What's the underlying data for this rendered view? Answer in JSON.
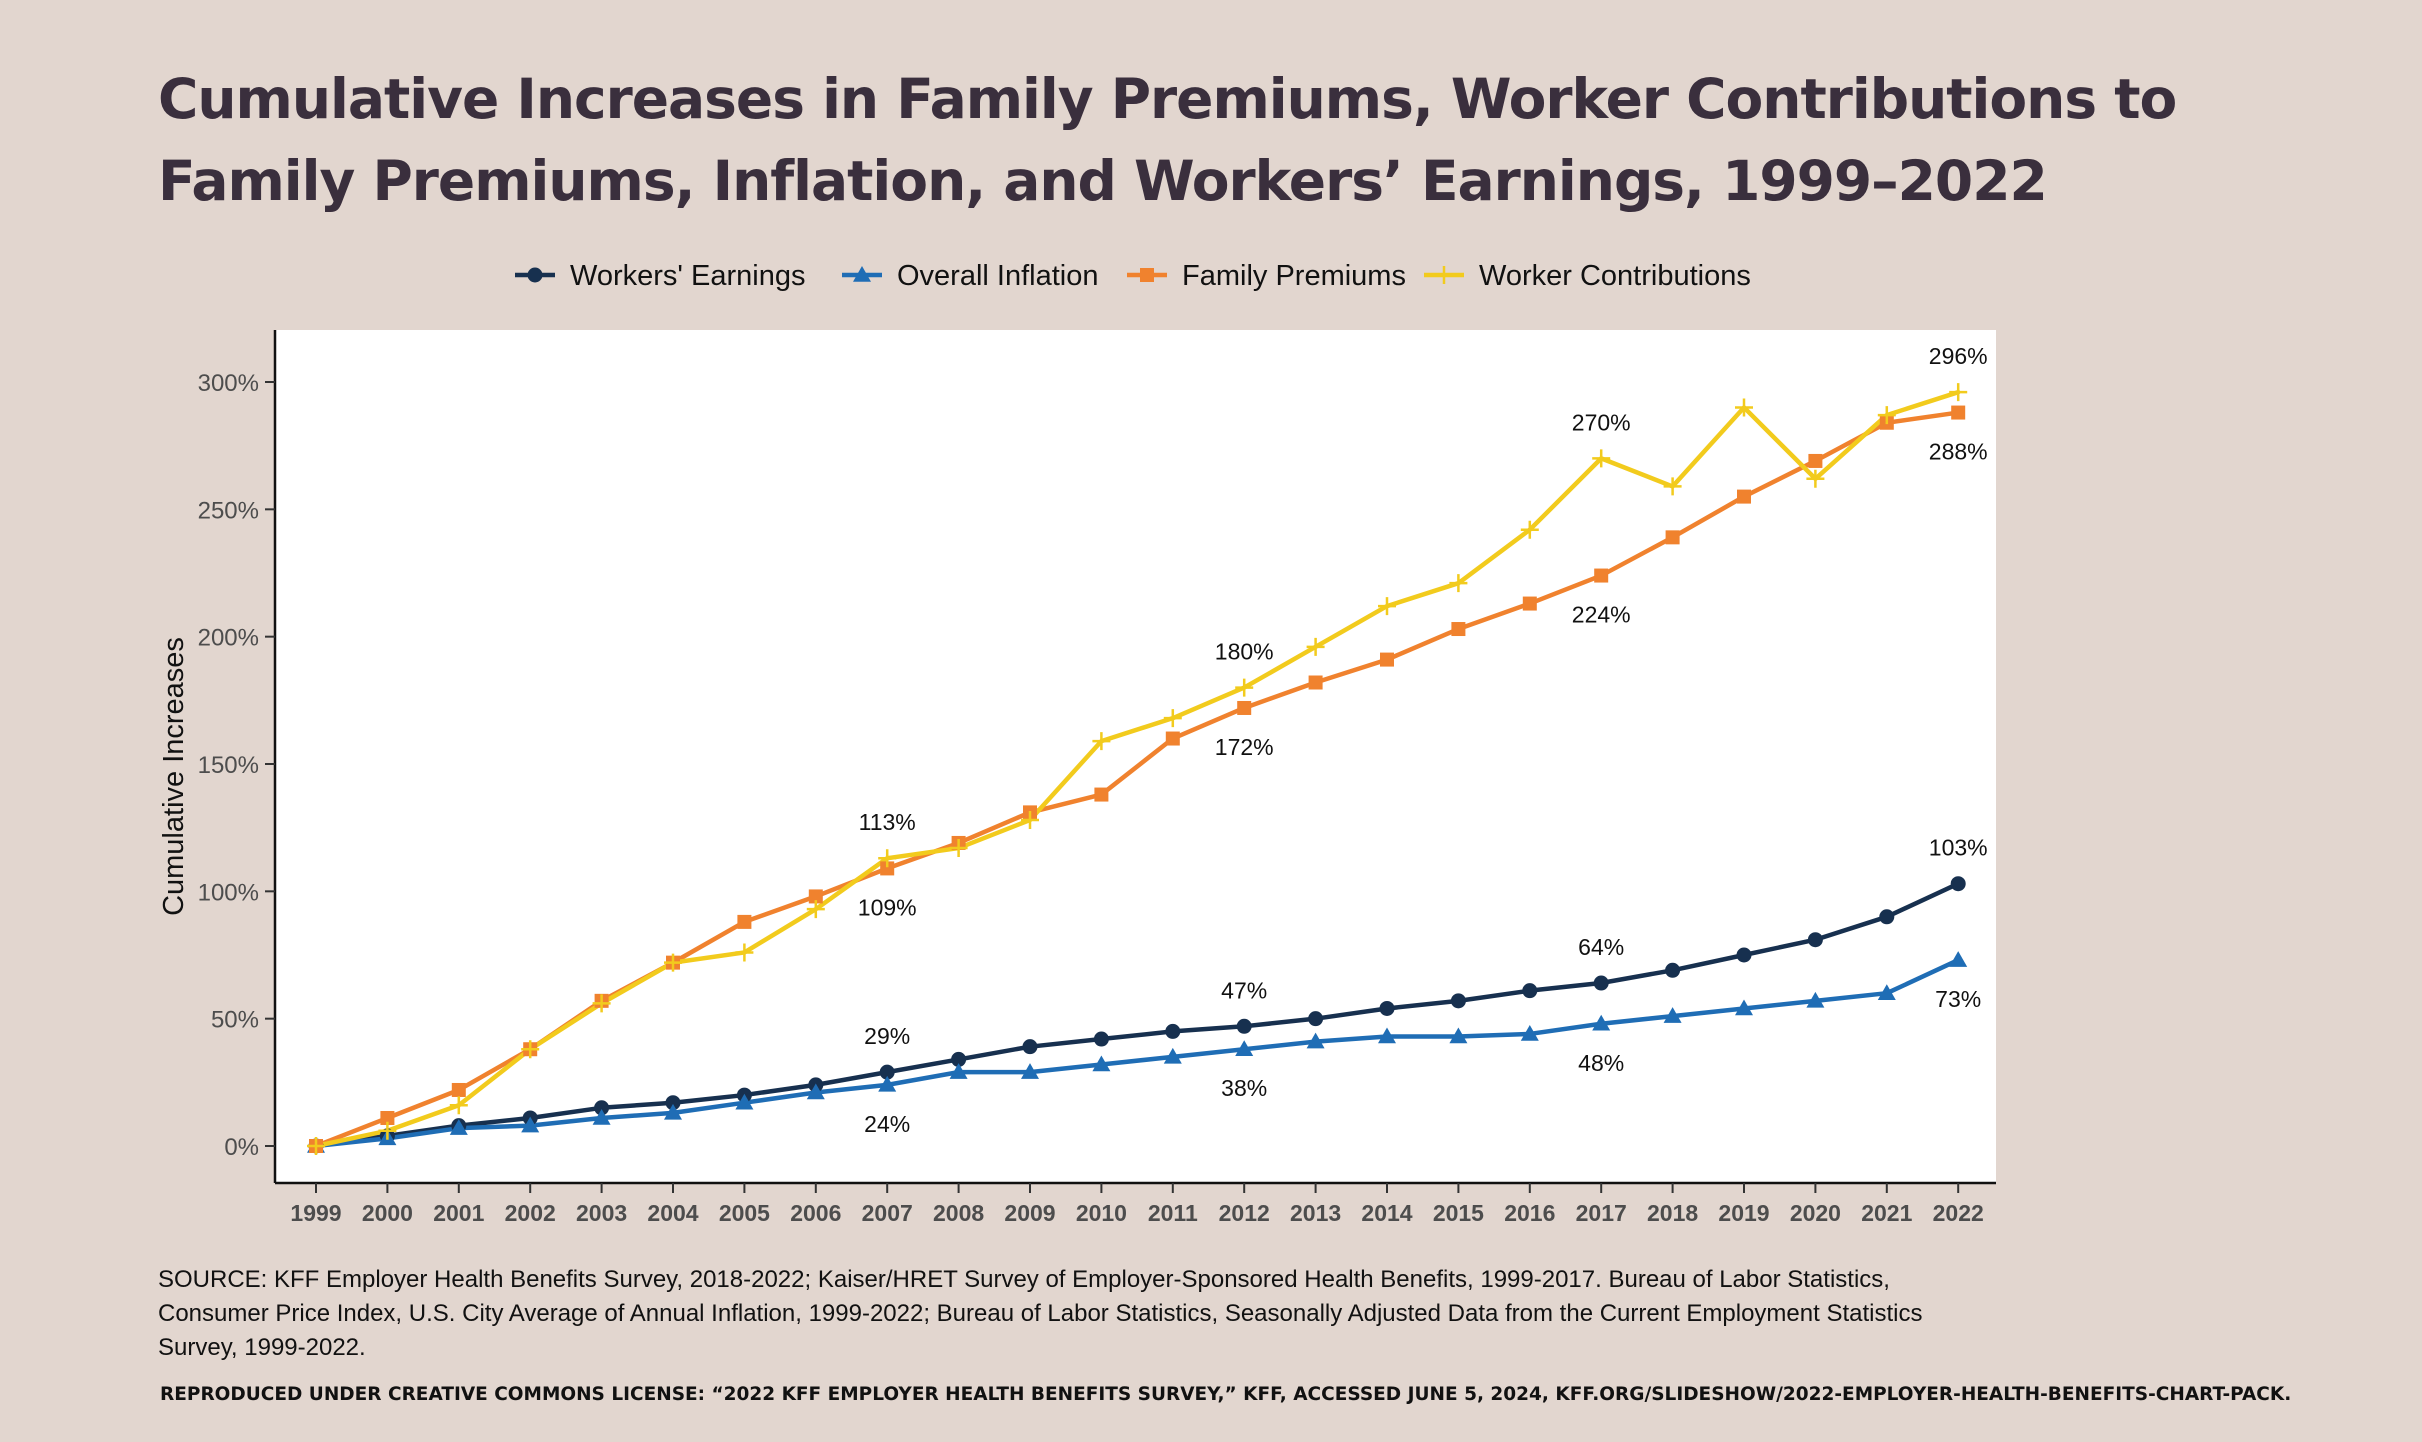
{
  "title": {
    "line1": "Cumulative Increases in Family Premiums, Worker Contributions to",
    "line2": "Family Premiums, Inflation, and Workers’ Earnings, 1999–2022"
  },
  "source": {
    "text": "SOURCE: KFF Employer Health Benefits Survey, 2018-2022; Kaiser/HRET Survey of Employer-Sponsored Health Benefits, 1999-2017. Bureau of Labor Statistics, Consumer Price Index, U.S. City Average of Annual Inflation, 1999-2022; Bureau of Labor Statistics, Seasonally Adjusted Data from the Current Employment Statistics Survey, 1999-2022."
  },
  "license": {
    "text": "REPRODUCED UNDER CREATIVE COMMONS LICENSE: “2022 KFF EMPLOYER HEALTH BENEFITS SURVEY,” KFF, ACCESSED JUNE 5, 2024, KFF.ORG/SLIDESHOW/2022-EMPLOYER-HEALTH-BENEFITS-CHART-PACK."
  },
  "chart_data": {
    "type": "line",
    "ylabel": "Cumulative Increases",
    "xlabel": "",
    "ylim": [
      -6,
      320
    ],
    "yticks": [
      0,
      50,
      100,
      150,
      200,
      250,
      300
    ],
    "ytick_labels": [
      "0%",
      "50%",
      "100%",
      "150%",
      "200%",
      "250%",
      "300%"
    ],
    "grid": false,
    "legend_position": "top-center",
    "x": [
      "1999",
      "2000",
      "2001",
      "2002",
      "2003",
      "2004",
      "2005",
      "2006",
      "2007",
      "2008",
      "2009",
      "2010",
      "2011",
      "2012",
      "2013",
      "2014",
      "2015",
      "2016",
      "2017",
      "2018",
      "2019",
      "2020",
      "2021",
      "2022"
    ],
    "series": [
      {
        "name": "Workers' Earnings",
        "color": "#17304f",
        "marker": "circle",
        "values": [
          0,
          4,
          8,
          11,
          15,
          17,
          20,
          24,
          29,
          34,
          39,
          42,
          45,
          47,
          50,
          54,
          57,
          61,
          64,
          69,
          75,
          81,
          90,
          103
        ]
      },
      {
        "name": "Overall Inflation",
        "color": "#1f6db5",
        "marker": "triangle",
        "values": [
          0,
          3,
          7,
          8,
          11,
          13,
          17,
          21,
          24,
          29,
          29,
          32,
          35,
          38,
          41,
          43,
          43,
          44,
          48,
          51,
          54,
          57,
          60,
          73
        ]
      },
      {
        "name": "Family Premiums",
        "color": "#f0822e",
        "marker": "square",
        "values": [
          0,
          11,
          22,
          38,
          57,
          72,
          88,
          98,
          109,
          119,
          131,
          138,
          160,
          172,
          182,
          191,
          203,
          213,
          224,
          239,
          255,
          269,
          284,
          288
        ]
      },
      {
        "name": "Worker Contributions",
        "color": "#f2cb1d",
        "marker": "plus",
        "values": [
          0,
          6,
          16,
          38,
          56,
          72,
          76,
          93,
          113,
          117,
          128,
          159,
          168,
          180,
          196,
          212,
          221,
          242,
          270,
          259,
          290,
          262,
          287,
          296
        ]
      }
    ],
    "annotations": [
      {
        "series": "Worker Contributions",
        "x": "2007",
        "label": "113%",
        "placement": "above"
      },
      {
        "series": "Family Premiums",
        "x": "2007",
        "label": "109%",
        "placement": "below"
      },
      {
        "series": "Worker Contributions",
        "x": "2012",
        "label": "180%",
        "placement": "above"
      },
      {
        "series": "Family Premiums",
        "x": "2012",
        "label": "172%",
        "placement": "below"
      },
      {
        "series": "Worker Contributions",
        "x": "2017",
        "label": "270%",
        "placement": "above"
      },
      {
        "series": "Family Premiums",
        "x": "2017",
        "label": "224%",
        "placement": "below"
      },
      {
        "series": "Worker Contributions",
        "x": "2022",
        "label": "296%",
        "placement": "above"
      },
      {
        "series": "Family Premiums",
        "x": "2022",
        "label": "288%",
        "placement": "below"
      },
      {
        "series": "Workers' Earnings",
        "x": "2007",
        "label": "29%",
        "placement": "above"
      },
      {
        "series": "Overall Inflation",
        "x": "2007",
        "label": "24%",
        "placement": "below"
      },
      {
        "series": "Workers' Earnings",
        "x": "2012",
        "label": "47%",
        "placement": "above"
      },
      {
        "series": "Overall Inflation",
        "x": "2012",
        "label": "38%",
        "placement": "below"
      },
      {
        "series": "Workers' Earnings",
        "x": "2017",
        "label": "64%",
        "placement": "above"
      },
      {
        "series": "Overall Inflation",
        "x": "2017",
        "label": "48%",
        "placement": "below"
      },
      {
        "series": "Workers' Earnings",
        "x": "2022",
        "label": "103%",
        "placement": "above"
      },
      {
        "series": "Overall Inflation",
        "x": "2022",
        "label": "73%",
        "placement": "below"
      }
    ]
  }
}
